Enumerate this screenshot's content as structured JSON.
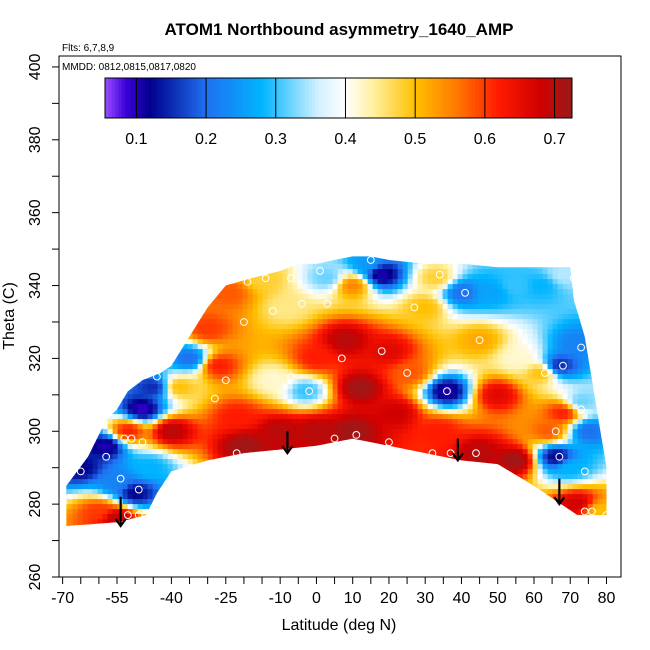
{
  "chart_data": {
    "type": "heatmap",
    "title": "ATOM1 Northbound asymmetry_1640_AMP",
    "annotations": [
      "Flts: 6,7,8,9",
      "MMDD: 0812,0815,0817,0820"
    ],
    "xlabel": "Latitude (deg N)",
    "ylabel": "Theta (C)",
    "xlim": [
      -71,
      84
    ],
    "ylim": [
      260,
      403
    ],
    "x_ticks": [
      -70,
      -55,
      -40,
      -25,
      -10,
      0,
      10,
      20,
      30,
      40,
      50,
      60,
      70,
      80
    ],
    "x_minor_ticks": [
      -65,
      -60,
      -50,
      -45,
      -35,
      -30,
      -20,
      -15,
      -5,
      5,
      15,
      25,
      35,
      45,
      55,
      65,
      75
    ],
    "y_ticks": [
      260,
      280,
      300,
      320,
      340,
      360,
      380,
      400
    ],
    "y_minor_ticks": [
      270,
      290,
      310,
      330,
      350,
      370,
      390
    ],
    "colorbar": {
      "range": [
        0.055,
        0.725
      ],
      "ticks": [
        0.1,
        0.2,
        0.3,
        0.4,
        0.5,
        0.6,
        0.7
      ],
      "stops": [
        {
          "v": 0.055,
          "color": "#9a4dff"
        },
        {
          "v": 0.085,
          "color": "#3b00d9"
        },
        {
          "v": 0.12,
          "color": "#00008c"
        },
        {
          "v": 0.2,
          "color": "#2070f0"
        },
        {
          "v": 0.28,
          "color": "#00b4ff"
        },
        {
          "v": 0.36,
          "color": "#d0f0ff"
        },
        {
          "v": 0.4,
          "color": "#ffffff"
        },
        {
          "v": 0.44,
          "color": "#fff0a0"
        },
        {
          "v": 0.5,
          "color": "#ffc000"
        },
        {
          "v": 0.56,
          "color": "#ff7800"
        },
        {
          "v": 0.62,
          "color": "#ff1a00"
        },
        {
          "v": 0.68,
          "color": "#d00000"
        },
        {
          "v": 0.725,
          "color": "#9a1a1a"
        }
      ]
    },
    "domain_outline": [
      [
        -69,
        272
      ],
      [
        -69,
        285
      ],
      [
        -63,
        293
      ],
      [
        -58,
        303
      ],
      [
        -55,
        306
      ],
      [
        -52,
        311
      ],
      [
        -48,
        314
      ],
      [
        -43,
        316
      ],
      [
        -40,
        318
      ],
      [
        -35,
        326
      ],
      [
        -30,
        334
      ],
      [
        -25,
        340
      ],
      [
        -18,
        342
      ],
      [
        -10,
        344
      ],
      [
        -5,
        346
      ],
      [
        0,
        346
      ],
      [
        5,
        347
      ],
      [
        10,
        348
      ],
      [
        15,
        348
      ],
      [
        20,
        347
      ],
      [
        30,
        346
      ],
      [
        40,
        346
      ],
      [
        50,
        345
      ],
      [
        60,
        345
      ],
      [
        70,
        345
      ],
      [
        71,
        336
      ],
      [
        74,
        326
      ],
      [
        76,
        314
      ],
      [
        78,
        302
      ],
      [
        80,
        290
      ],
      [
        80,
        277
      ],
      [
        72,
        277
      ],
      [
        66,
        281
      ],
      [
        60,
        285
      ],
      [
        50,
        291
      ],
      [
        40,
        292
      ],
      [
        30,
        294
      ],
      [
        20,
        296
      ],
      [
        10,
        298
      ],
      [
        0,
        296
      ],
      [
        -10,
        295
      ],
      [
        -20,
        294
      ],
      [
        -30,
        292
      ],
      [
        -40,
        289
      ],
      [
        -44,
        283
      ],
      [
        -47,
        277
      ],
      [
        -55,
        275
      ],
      [
        -69,
        274
      ]
    ],
    "field_points": [
      {
        "lat": -65,
        "theta": 290,
        "v": 0.12
      },
      {
        "lat": -58,
        "theta": 296,
        "v": 0.1
      },
      {
        "lat": -55,
        "theta": 286,
        "v": 0.22
      },
      {
        "lat": -52,
        "theta": 300,
        "v": 0.62
      },
      {
        "lat": -48,
        "theta": 306,
        "v": 0.09
      },
      {
        "lat": -45,
        "theta": 312,
        "v": 0.15
      },
      {
        "lat": -50,
        "theta": 283,
        "v": 0.12
      },
      {
        "lat": -60,
        "theta": 278,
        "v": 0.6
      },
      {
        "lat": -55,
        "theta": 276,
        "v": 0.7
      },
      {
        "lat": -46,
        "theta": 290,
        "v": 0.28
      },
      {
        "lat": -40,
        "theta": 300,
        "v": 0.7
      },
      {
        "lat": -38,
        "theta": 312,
        "v": 0.5
      },
      {
        "lat": -35,
        "theta": 320,
        "v": 0.2
      },
      {
        "lat": -30,
        "theta": 328,
        "v": 0.6
      },
      {
        "lat": -27,
        "theta": 318,
        "v": 0.62
      },
      {
        "lat": -24,
        "theta": 338,
        "v": 0.58
      },
      {
        "lat": -15,
        "theta": 342,
        "v": 0.48
      },
      {
        "lat": -8,
        "theta": 334,
        "v": 0.45
      },
      {
        "lat": -3,
        "theta": 311,
        "v": 0.3
      },
      {
        "lat": -12,
        "theta": 314,
        "v": 0.42
      },
      {
        "lat": -22,
        "theta": 304,
        "v": 0.62
      },
      {
        "lat": -20,
        "theta": 296,
        "v": 0.72
      },
      {
        "lat": 0,
        "theta": 300,
        "v": 0.7
      },
      {
        "lat": 3,
        "theta": 342,
        "v": 0.32
      },
      {
        "lat": 8,
        "theta": 325,
        "v": 0.7
      },
      {
        "lat": 10,
        "theta": 340,
        "v": 0.55
      },
      {
        "lat": 14,
        "theta": 346,
        "v": 0.25
      },
      {
        "lat": 18,
        "theta": 343,
        "v": 0.1
      },
      {
        "lat": 20,
        "theta": 322,
        "v": 0.66
      },
      {
        "lat": 22,
        "theta": 305,
        "v": 0.68
      },
      {
        "lat": 26,
        "theta": 316,
        "v": 0.58
      },
      {
        "lat": 30,
        "theta": 334,
        "v": 0.5
      },
      {
        "lat": 33,
        "theta": 342,
        "v": 0.48
      },
      {
        "lat": 36,
        "theta": 311,
        "v": 0.1
      },
      {
        "lat": 34,
        "theta": 300,
        "v": 0.62
      },
      {
        "lat": 40,
        "theta": 338,
        "v": 0.2
      },
      {
        "lat": 45,
        "theta": 325,
        "v": 0.52
      },
      {
        "lat": 48,
        "theta": 338,
        "v": 0.26
      },
      {
        "lat": 55,
        "theta": 340,
        "v": 0.3
      },
      {
        "lat": 62,
        "theta": 340,
        "v": 0.28
      },
      {
        "lat": 68,
        "theta": 343,
        "v": 0.35
      },
      {
        "lat": 50,
        "theta": 310,
        "v": 0.66
      },
      {
        "lat": 56,
        "theta": 320,
        "v": 0.42
      },
      {
        "lat": 62,
        "theta": 316,
        "v": 0.5
      },
      {
        "lat": 67,
        "theta": 318,
        "v": 0.15
      },
      {
        "lat": 72,
        "theta": 324,
        "v": 0.22
      },
      {
        "lat": 73,
        "theta": 308,
        "v": 0.32
      },
      {
        "lat": 68,
        "theta": 305,
        "v": 0.62
      },
      {
        "lat": 64,
        "theta": 300,
        "v": 0.58
      },
      {
        "lat": 66,
        "theta": 293,
        "v": 0.12
      },
      {
        "lat": 70,
        "theta": 290,
        "v": 0.28
      },
      {
        "lat": 75,
        "theta": 300,
        "v": 0.2
      },
      {
        "lat": 72,
        "theta": 280,
        "v": 0.68
      },
      {
        "lat": 78,
        "theta": 278,
        "v": 0.5
      },
      {
        "lat": 45,
        "theta": 294,
        "v": 0.7
      },
      {
        "lat": 55,
        "theta": 292,
        "v": 0.72
      },
      {
        "lat": 10,
        "theta": 300,
        "v": 0.72
      },
      {
        "lat": -10,
        "theta": 300,
        "v": 0.7
      },
      {
        "lat": 0,
        "theta": 320,
        "v": 0.62
      },
      {
        "lat": 12,
        "theta": 312,
        "v": 0.72
      }
    ],
    "sample_points": [
      {
        "lat": -65,
        "theta": 289
      },
      {
        "lat": -58,
        "theta": 293
      },
      {
        "lat": -53,
        "theta": 298
      },
      {
        "lat": -51,
        "theta": 298
      },
      {
        "lat": -48,
        "theta": 297
      },
      {
        "lat": -54,
        "theta": 287
      },
      {
        "lat": -49,
        "theta": 284
      },
      {
        "lat": -52,
        "theta": 277
      },
      {
        "lat": -49,
        "theta": 277
      },
      {
        "lat": -44,
        "theta": 315
      },
      {
        "lat": -36,
        "theta": 289
      },
      {
        "lat": -29,
        "theta": 291
      },
      {
        "lat": -28,
        "theta": 309
      },
      {
        "lat": -25,
        "theta": 314
      },
      {
        "lat": -22,
        "theta": 294
      },
      {
        "lat": -20,
        "theta": 330
      },
      {
        "lat": -19,
        "theta": 341
      },
      {
        "lat": -14,
        "theta": 342
      },
      {
        "lat": -12,
        "theta": 333
      },
      {
        "lat": -7,
        "theta": 342
      },
      {
        "lat": -4,
        "theta": 335
      },
      {
        "lat": -2,
        "theta": 311
      },
      {
        "lat": -7,
        "theta": 315
      },
      {
        "lat": 1,
        "theta": 344
      },
      {
        "lat": 3,
        "theta": 335
      },
      {
        "lat": 5,
        "theta": 298
      },
      {
        "lat": 7,
        "theta": 320
      },
      {
        "lat": 11,
        "theta": 299
      },
      {
        "lat": 15,
        "theta": 347
      },
      {
        "lat": 18,
        "theta": 322
      },
      {
        "lat": 20,
        "theta": 297
      },
      {
        "lat": 25,
        "theta": 316
      },
      {
        "lat": 27,
        "theta": 334
      },
      {
        "lat": 32,
        "theta": 294
      },
      {
        "lat": 34,
        "theta": 343
      },
      {
        "lat": 36,
        "theta": 311
      },
      {
        "lat": 37,
        "theta": 294
      },
      {
        "lat": 41,
        "theta": 338
      },
      {
        "lat": 44,
        "theta": 294
      },
      {
        "lat": 45,
        "theta": 325
      },
      {
        "lat": 63,
        "theta": 316
      },
      {
        "lat": 66,
        "theta": 300
      },
      {
        "lat": 67,
        "theta": 293
      },
      {
        "lat": 68,
        "theta": 318
      },
      {
        "lat": 71,
        "theta": 342
      },
      {
        "lat": 73,
        "theta": 323
      },
      {
        "lat": 73,
        "theta": 306
      },
      {
        "lat": 74,
        "theta": 289
      },
      {
        "lat": 74,
        "theta": 278
      },
      {
        "lat": 76,
        "theta": 278
      },
      {
        "lat": 80,
        "theta": 277
      }
    ],
    "arrows": [
      {
        "lat": -54,
        "theta_from": 282,
        "theta_to": 274
      },
      {
        "lat": -8,
        "theta_from": 300,
        "theta_to": 294
      },
      {
        "lat": 39,
        "theta_from": 298,
        "theta_to": 292
      },
      {
        "lat": 67,
        "theta_from": 287,
        "theta_to": 280
      }
    ]
  }
}
